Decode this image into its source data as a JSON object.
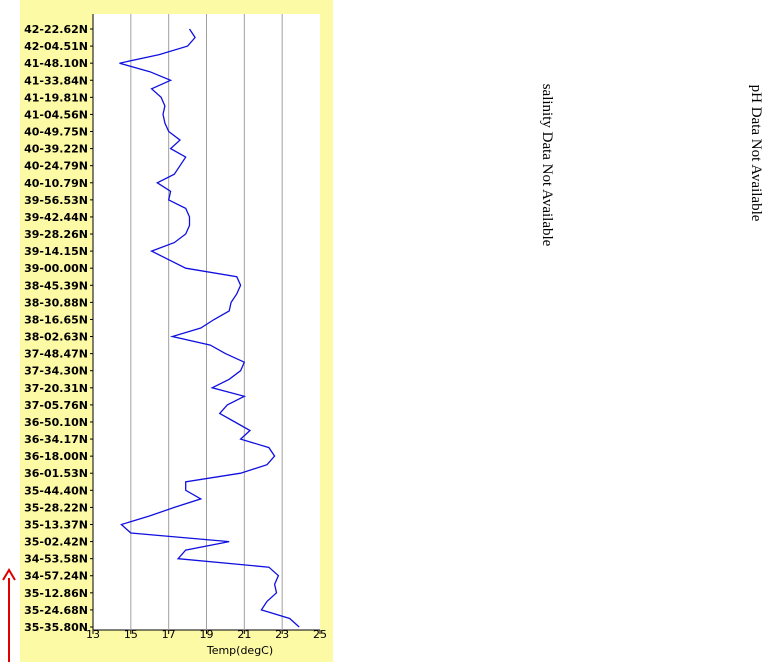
{
  "chart_data": {
    "type": "line",
    "color": "#1010e0",
    "xlabel": "Temp(degC)",
    "xlim": [
      13,
      25
    ],
    "xticks": [
      13,
      15,
      17,
      19,
      21,
      23,
      25
    ],
    "grid": true,
    "categories": [
      "35-35.80N",
      null,
      "35-24.68N",
      null,
      "35-12.86N",
      null,
      "34-57.24N",
      null,
      "34-53.58N",
      null,
      "35-02.42N",
      null,
      "35-13.37N",
      null,
      "35-28.22N",
      null,
      "35-44.40N",
      null,
      "36-01.53N",
      null,
      "36-18.00N",
      null,
      "36-34.17N",
      null,
      "36-50.10N",
      null,
      "37-05.76N",
      null,
      "37-20.31N",
      null,
      "37-34.30N",
      null,
      "37-48.47N",
      null,
      "38-02.63N",
      null,
      "38-16.65N",
      null,
      "38-30.88N",
      null,
      "38-45.39N",
      null,
      "39-00.00N",
      null,
      "39-14.15N",
      null,
      "39-28.26N",
      null,
      "39-42.44N",
      null,
      "39-56.53N",
      null,
      "40-10.79N",
      null,
      "40-24.79N",
      null,
      "40-39.22N",
      null,
      "40-49.75N",
      null,
      "41-04.56N",
      null,
      "41-19.81N",
      null,
      "41-33.84N",
      null,
      "41-48.10N",
      null,
      "42-04.51N",
      null,
      "42-22.62N"
    ],
    "values": [
      23.9,
      23.4,
      21.9,
      22.2,
      22.7,
      22.6,
      22.8,
      22.3,
      17.5,
      17.9,
      20.2,
      15.0,
      14.5,
      16.0,
      17.3,
      18.7,
      17.9,
      17.9,
      20.8,
      22.2,
      22.6,
      22.3,
      20.8,
      21.3,
      20.5,
      19.7,
      20.1,
      21.0,
      19.3,
      20.2,
      20.8,
      21.0,
      20.0,
      19.2,
      17.2,
      18.7,
      19.4,
      20.2,
      20.3,
      20.6,
      20.8,
      20.6,
      17.9,
      17.0,
      16.1,
      17.3,
      17.9,
      18.1,
      18.1,
      17.9,
      17.0,
      17.1,
      16.4,
      17.3,
      17.6,
      17.9,
      17.1,
      17.6,
      17.0,
      16.8,
      16.7,
      16.8,
      16.6,
      16.1,
      17.1,
      16.0,
      14.4,
      16.5,
      18.0,
      18.4,
      18.1
    ],
    "annotations": [
      "salinity Data Not Available",
      "pH Data Not Available"
    ]
  }
}
